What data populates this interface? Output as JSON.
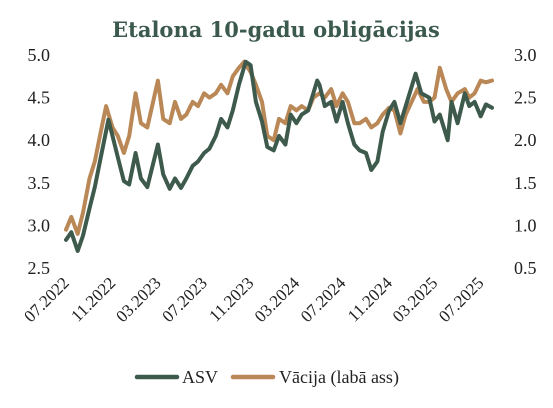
{
  "chart_data": {
    "type": "line",
    "title": "Etalona 10-gadu obligācijas",
    "xlabel": "",
    "ylabel": "",
    "ylabel_right": "",
    "legend_position": "bottom",
    "grid": false,
    "x_range": [
      "2022-07-01",
      "2025-07-31"
    ],
    "x_ticks": [
      "07.2022",
      "11.2022",
      "03.2023",
      "07.2023",
      "11.2023",
      "03.2024",
      "07.2024",
      "11.2024",
      "03.2025",
      "07.2025"
    ],
    "ylim_left": [
      2.5,
      5.0
    ],
    "yticks_left": [
      "2.5",
      "3.0",
      "3.5",
      "4.0",
      "4.5",
      "5.0"
    ],
    "ylim_right": [
      0.5,
      3.0
    ],
    "yticks_right": [
      "0.5",
      "1.0",
      "1.5",
      "2.0",
      "2.5",
      "3.0"
    ],
    "colors": {
      "us": "#3d5a4c",
      "de": "#b98856"
    },
    "series": [
      {
        "name": "ASV",
        "axis": "left",
        "color": "#3d5a4c",
        "points": [
          [
            "2022-07-01",
            2.83
          ],
          [
            "2022-07-15",
            2.92
          ],
          [
            "2022-08-01",
            2.7
          ],
          [
            "2022-08-15",
            2.88
          ],
          [
            "2022-09-01",
            3.2
          ],
          [
            "2022-09-15",
            3.45
          ],
          [
            "2022-10-01",
            3.8
          ],
          [
            "2022-10-21",
            4.24
          ],
          [
            "2022-11-01",
            4.05
          ],
          [
            "2022-11-15",
            3.8
          ],
          [
            "2022-12-01",
            3.52
          ],
          [
            "2022-12-15",
            3.48
          ],
          [
            "2023-01-01",
            3.85
          ],
          [
            "2023-01-15",
            3.55
          ],
          [
            "2023-02-01",
            3.45
          ],
          [
            "2023-03-01",
            3.95
          ],
          [
            "2023-03-15",
            3.6
          ],
          [
            "2023-04-01",
            3.43
          ],
          [
            "2023-04-15",
            3.55
          ],
          [
            "2023-05-01",
            3.44
          ],
          [
            "2023-05-15",
            3.55
          ],
          [
            "2023-06-01",
            3.7
          ],
          [
            "2023-06-15",
            3.75
          ],
          [
            "2023-07-01",
            3.85
          ],
          [
            "2023-07-15",
            3.9
          ],
          [
            "2023-08-01",
            4.05
          ],
          [
            "2023-08-15",
            4.25
          ],
          [
            "2023-09-01",
            4.15
          ],
          [
            "2023-09-15",
            4.35
          ],
          [
            "2023-10-01",
            4.65
          ],
          [
            "2023-10-19",
            4.92
          ],
          [
            "2023-11-01",
            4.88
          ],
          [
            "2023-11-15",
            4.45
          ],
          [
            "2023-12-01",
            4.22
          ],
          [
            "2023-12-15",
            3.92
          ],
          [
            "2024-01-01",
            3.88
          ],
          [
            "2024-01-15",
            4.05
          ],
          [
            "2024-02-01",
            3.95
          ],
          [
            "2024-02-15",
            4.3
          ],
          [
            "2024-03-01",
            4.2
          ],
          [
            "2024-03-15",
            4.3
          ],
          [
            "2024-04-01",
            4.35
          ],
          [
            "2024-04-25",
            4.7
          ],
          [
            "2024-05-01",
            4.65
          ],
          [
            "2024-05-15",
            4.4
          ],
          [
            "2024-06-01",
            4.45
          ],
          [
            "2024-06-15",
            4.22
          ],
          [
            "2024-07-01",
            4.45
          ],
          [
            "2024-07-15",
            4.2
          ],
          [
            "2024-08-01",
            3.95
          ],
          [
            "2024-08-15",
            3.88
          ],
          [
            "2024-09-01",
            3.85
          ],
          [
            "2024-09-15",
            3.65
          ],
          [
            "2024-10-01",
            3.75
          ],
          [
            "2024-10-15",
            4.1
          ],
          [
            "2024-11-01",
            4.35
          ],
          [
            "2024-11-15",
            4.45
          ],
          [
            "2024-12-01",
            4.2
          ],
          [
            "2024-12-15",
            4.4
          ],
          [
            "2025-01-10",
            4.78
          ],
          [
            "2025-01-25",
            4.55
          ],
          [
            "2025-02-15",
            4.5
          ],
          [
            "2025-03-01",
            4.22
          ],
          [
            "2025-03-15",
            4.3
          ],
          [
            "2025-04-05",
            4.0
          ],
          [
            "2025-04-15",
            4.45
          ],
          [
            "2025-05-01",
            4.2
          ],
          [
            "2025-05-20",
            4.55
          ],
          [
            "2025-06-01",
            4.4
          ],
          [
            "2025-06-15",
            4.45
          ],
          [
            "2025-07-01",
            4.28
          ],
          [
            "2025-07-15",
            4.42
          ],
          [
            "2025-07-31",
            4.38
          ]
        ]
      },
      {
        "name": "Vācija (labā ass)",
        "axis": "right",
        "color": "#b98856",
        "points": [
          [
            "2022-07-01",
            0.95
          ],
          [
            "2022-07-15",
            1.1
          ],
          [
            "2022-08-01",
            0.9
          ],
          [
            "2022-08-15",
            1.15
          ],
          [
            "2022-09-01",
            1.55
          ],
          [
            "2022-09-15",
            1.75
          ],
          [
            "2022-10-01",
            2.1
          ],
          [
            "2022-10-15",
            2.4
          ],
          [
            "2022-11-01",
            2.15
          ],
          [
            "2022-11-15",
            2.05
          ],
          [
            "2022-12-01",
            1.85
          ],
          [
            "2022-12-15",
            2.05
          ],
          [
            "2023-01-01",
            2.55
          ],
          [
            "2023-01-15",
            2.2
          ],
          [
            "2023-02-01",
            2.15
          ],
          [
            "2023-03-01",
            2.7
          ],
          [
            "2023-03-15",
            2.25
          ],
          [
            "2023-04-01",
            2.2
          ],
          [
            "2023-04-15",
            2.45
          ],
          [
            "2023-05-01",
            2.25
          ],
          [
            "2023-05-15",
            2.3
          ],
          [
            "2023-06-01",
            2.45
          ],
          [
            "2023-06-15",
            2.4
          ],
          [
            "2023-07-01",
            2.55
          ],
          [
            "2023-07-15",
            2.5
          ],
          [
            "2023-08-01",
            2.55
          ],
          [
            "2023-08-15",
            2.65
          ],
          [
            "2023-09-01",
            2.55
          ],
          [
            "2023-09-15",
            2.75
          ],
          [
            "2023-10-01",
            2.85
          ],
          [
            "2023-10-15",
            2.92
          ],
          [
            "2023-11-01",
            2.8
          ],
          [
            "2023-11-15",
            2.65
          ],
          [
            "2023-12-01",
            2.45
          ],
          [
            "2023-12-15",
            2.05
          ],
          [
            "2024-01-01",
            2.0
          ],
          [
            "2024-01-15",
            2.25
          ],
          [
            "2024-02-01",
            2.2
          ],
          [
            "2024-02-15",
            2.4
          ],
          [
            "2024-03-01",
            2.35
          ],
          [
            "2024-03-15",
            2.4
          ],
          [
            "2024-04-01",
            2.35
          ],
          [
            "2024-04-15",
            2.5
          ],
          [
            "2024-05-01",
            2.55
          ],
          [
            "2024-05-15",
            2.5
          ],
          [
            "2024-06-01",
            2.6
          ],
          [
            "2024-06-15",
            2.4
          ],
          [
            "2024-07-01",
            2.55
          ],
          [
            "2024-07-15",
            2.45
          ],
          [
            "2024-08-01",
            2.2
          ],
          [
            "2024-08-15",
            2.2
          ],
          [
            "2024-09-01",
            2.25
          ],
          [
            "2024-09-15",
            2.15
          ],
          [
            "2024-10-01",
            2.2
          ],
          [
            "2024-10-15",
            2.3
          ],
          [
            "2024-11-01",
            2.38
          ],
          [
            "2024-11-15",
            2.35
          ],
          [
            "2024-12-01",
            2.08
          ],
          [
            "2024-12-15",
            2.3
          ],
          [
            "2025-01-15",
            2.6
          ],
          [
            "2025-02-01",
            2.45
          ],
          [
            "2025-02-15",
            2.45
          ],
          [
            "2025-03-01",
            2.5
          ],
          [
            "2025-03-15",
            2.85
          ],
          [
            "2025-04-01",
            2.6
          ],
          [
            "2025-04-15",
            2.45
          ],
          [
            "2025-05-01",
            2.55
          ],
          [
            "2025-05-20",
            2.6
          ],
          [
            "2025-06-01",
            2.5
          ],
          [
            "2025-06-15",
            2.55
          ],
          [
            "2025-07-01",
            2.7
          ],
          [
            "2025-07-15",
            2.68
          ],
          [
            "2025-07-31",
            2.7
          ]
        ]
      }
    ]
  }
}
